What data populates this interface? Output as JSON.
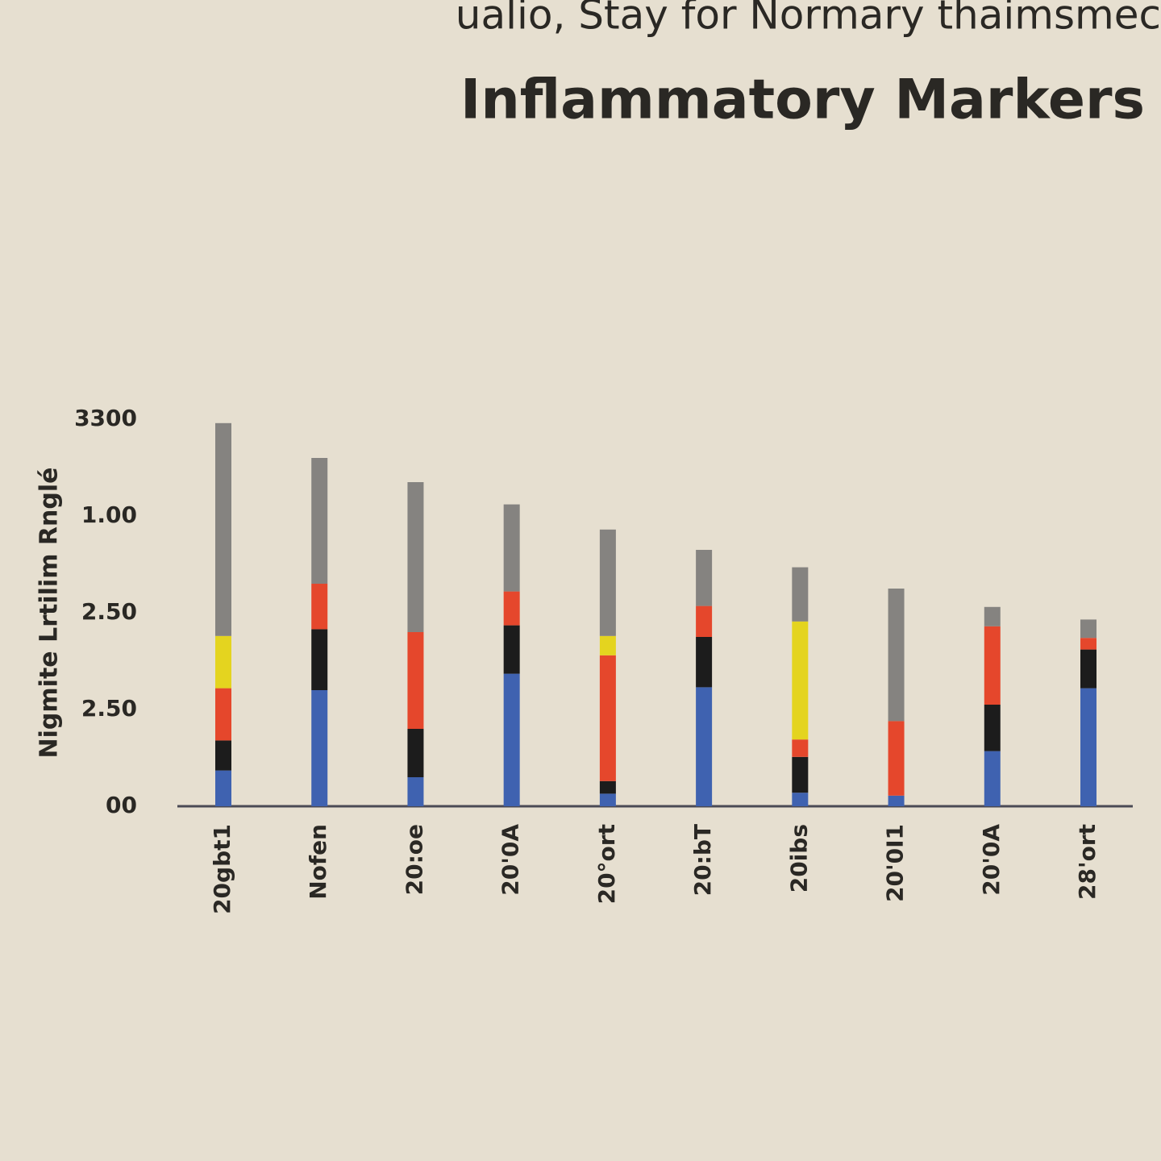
{
  "chart_data": {
    "type": "stacked_bar",
    "subtitle": "ualio, Stay for Normary thaimsmec",
    "title": "Inflammatory Markers",
    "y_label": "Nigmite Lrtilim Rnglé",
    "categories": [
      "20gbt1",
      "Nofen",
      "20:oe",
      "20'0A",
      "20°ort",
      "20:bT",
      "20ibs",
      "20'0I1",
      "20'0A",
      "28'ort"
    ],
    "series": [
      {
        "color": "#3f62b0",
        "values": [
          0.37,
          1.2,
          0.3,
          1.37,
          0.13,
          1.23,
          0.14,
          0.11,
          0.57,
          1.22
        ]
      },
      {
        "color": "#1c1c1c",
        "values": [
          0.31,
          0.63,
          0.5,
          0.5,
          0.13,
          0.52,
          0.37,
          0,
          0.48,
          0.4
        ]
      },
      {
        "color": "#e5472c",
        "values": [
          0.54,
          0.47,
          1.0,
          0.35,
          1.3,
          0.32,
          0.18,
          0.77,
          0.81,
          0.12
        ]
      },
      {
        "color": "#e4d41f",
        "values": [
          0.54,
          0,
          0,
          0,
          0.2,
          0,
          1.22,
          0,
          0,
          0
        ]
      },
      {
        "color": "#858380",
        "values": [
          2.2,
          1.3,
          1.55,
          0.9,
          1.1,
          0.58,
          0.56,
          1.37,
          0.2,
          0.19
        ]
      }
    ],
    "ylim": [
      0,
      4
    ],
    "yticks": [
      {
        "value": 0,
        "label": "00"
      },
      {
        "value": 1,
        "label": "2.50"
      },
      {
        "value": 2,
        "label": "2.50"
      },
      {
        "value": 3,
        "label": "1.00"
      },
      {
        "value": 4,
        "label": "3300"
      }
    ]
  }
}
